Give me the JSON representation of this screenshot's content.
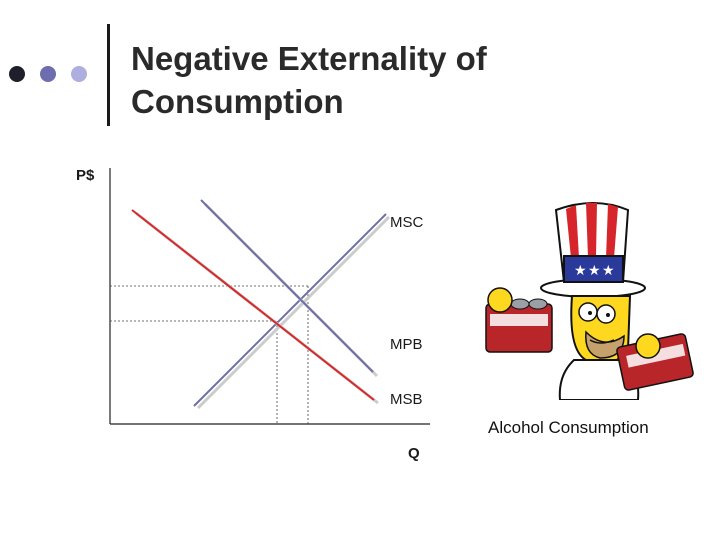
{
  "slide": {
    "title_line1": "Negative Externality of",
    "title_line2": "Consumption",
    "caption": "Alcohol Consumption"
  },
  "diagram": {
    "y_axis_label": "P$",
    "x_axis_label": "Q",
    "curves": [
      {
        "label": "MSC",
        "color": "#6e6ea6"
      },
      {
        "label": "MPB",
        "color": "#6e6ea6"
      },
      {
        "label": "MSB",
        "color": "#d62a2a"
      }
    ],
    "colors": {
      "msc": "#6e6ea6",
      "mpb": "#6e6ea6",
      "msb": "#d62a2a",
      "dot_dark": "#1f1f2b",
      "dot_mid": "#6d6db0",
      "dot_light": "#aeaee0"
    }
  },
  "illustration": {
    "subject": "Homer Simpson in an American flag top hat holding two six-packs of beer",
    "icon": "homer-cartoon"
  }
}
